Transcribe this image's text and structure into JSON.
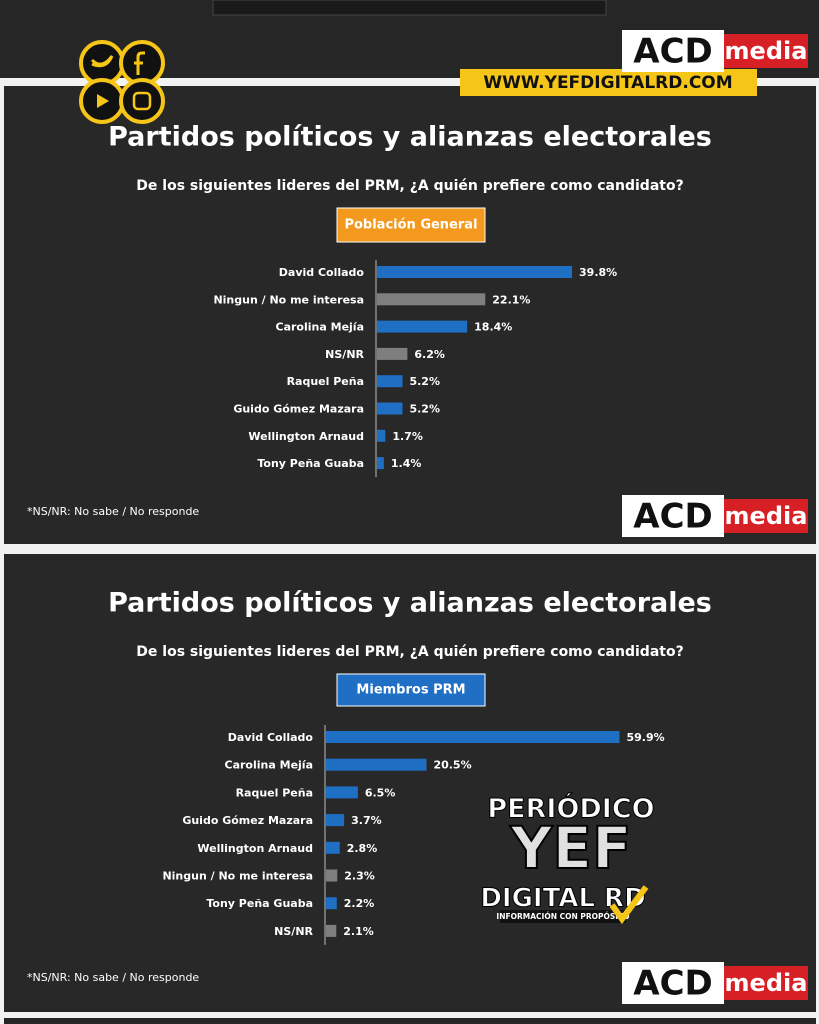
{
  "branding": {
    "acd": "ACD",
    "media": "media",
    "url": "WWW.YEFDIGITALRD.COM",
    "yef_top": "PERIÓDICO",
    "yef_mid": "YEF",
    "yef_bottom": "DIGITAL RD",
    "yef_tag": "INFORMACIÓN CON PROPÓSITO"
  },
  "chart_data": [
    {
      "type": "bar",
      "orientation": "horizontal",
      "title": "Partidos políticos y alianzas electorales",
      "subtitle": "De los siguientes lideres del PRM, ¿A quién prefiere como candidato?",
      "group_label": "Población General",
      "group_color": "#f39a1e",
      "footnote": "*NS/NR: No sabe / No responde",
      "categories": [
        "David Collado",
        "Ningun / No me interesa",
        "Carolina Mejía",
        "NS/NR",
        "Raquel Peña",
        "Guido Gómez Mazara",
        "Wellington Arnaud",
        "Tony Peña Guaba"
      ],
      "values": [
        39.8,
        22.1,
        18.4,
        6.2,
        5.2,
        5.2,
        1.7,
        1.4
      ],
      "value_labels": [
        "39.8%",
        "22.1%",
        "18.4%",
        "6.2%",
        "5.2%",
        "5.2%",
        "1.7%",
        "1.4%"
      ],
      "colors": [
        "#1f6fc5",
        "#7f7f7f",
        "#1f6fc5",
        "#7f7f7f",
        "#1f6fc5",
        "#1f6fc5",
        "#1f6fc5",
        "#1f6fc5"
      ]
    },
    {
      "type": "bar",
      "orientation": "horizontal",
      "title": "Partidos políticos y alianzas electorales",
      "subtitle": "De los siguientes lideres del PRM, ¿A quién prefiere como candidato?",
      "group_label": "Miembros PRM",
      "group_color": "#1f6fc5",
      "footnote": "*NS/NR: No sabe / No responde",
      "categories": [
        "David Collado",
        "Carolina Mejía",
        "Raquel Peña",
        "Guido Gómez Mazara",
        "Wellington Arnaud",
        "Ningun / No me interesa",
        "Tony Peña Guaba",
        "NS/NR"
      ],
      "values": [
        59.9,
        20.5,
        6.5,
        3.7,
        2.8,
        2.3,
        2.2,
        2.1
      ],
      "value_labels": [
        "59.9%",
        "20.5%",
        "6.5%",
        "3.7%",
        "2.8%",
        "2.3%",
        "2.2%",
        "2.1%"
      ],
      "colors": [
        "#1f6fc5",
        "#1f6fc5",
        "#1f6fc5",
        "#1f6fc5",
        "#1f6fc5",
        "#7f7f7f",
        "#1f6fc5",
        "#7f7f7f"
      ]
    }
  ]
}
